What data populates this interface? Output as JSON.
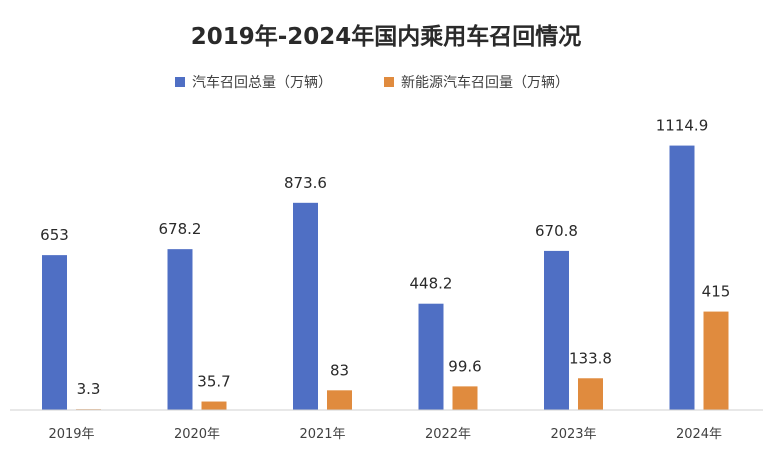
{
  "chart_data": {
    "type": "bar",
    "title": "2019年-2024年国内乘用车召回情况",
    "categories": [
      "2019年",
      "2020年",
      "2021年",
      "2022年",
      "2023年",
      "2024年"
    ],
    "series": [
      {
        "name": "汽车召回总量（万辆）",
        "color": "#4f6fc4",
        "values": [
          653,
          678.2,
          873.6,
          448.2,
          670.8,
          1114.9
        ],
        "labels": [
          "653",
          "678.2",
          "873.6",
          "448.2",
          "670.8",
          "1114.9"
        ]
      },
      {
        "name": "新能源汽车召回量（万辆）",
        "color": "#e08b3e",
        "values": [
          3.3,
          35.7,
          83,
          99.6,
          133.8,
          415
        ],
        "labels": [
          "3.3",
          "35.7",
          "83",
          "99.6",
          "133.8",
          "415"
        ]
      }
    ],
    "ylim": [
      0,
      1130
    ],
    "grid": false,
    "legend_position": "top-center",
    "xlabel": "",
    "ylabel": ""
  }
}
